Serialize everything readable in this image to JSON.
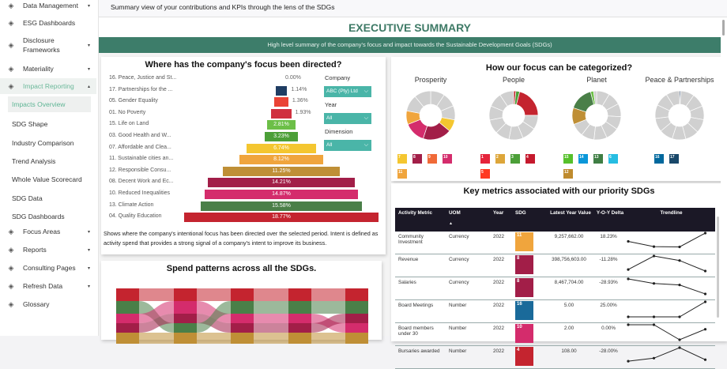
{
  "sidebar": {
    "items": [
      {
        "label": "Data Management",
        "icon": "network-icon",
        "caret": "▾"
      },
      {
        "label": "ESG Dashboards",
        "icon": "pie-icon"
      },
      {
        "label": "Disclosure Frameworks",
        "icon": "hierarchy-icon",
        "caret": "▾"
      },
      {
        "label": "Materiality",
        "icon": "scale-icon",
        "caret": "▾"
      },
      {
        "label": "Impact Reporting",
        "icon": "list-icon",
        "caret": "▴"
      },
      {
        "label": "Focus Areas",
        "icon": "target-icon",
        "caret": "▾"
      },
      {
        "label": "Reports",
        "icon": "report-icon",
        "caret": "▾"
      },
      {
        "label": "Consulting Pages",
        "icon": "handshake-icon",
        "caret": "▾"
      },
      {
        "label": "Refresh Data",
        "icon": "database-icon",
        "caret": "▾"
      },
      {
        "label": "Glossary",
        "icon": "book-icon"
      }
    ],
    "subitems": [
      "Impacts Overview",
      "SDG Shape",
      "Industry Comparison",
      "Trend Analysis",
      "Whole Value Scorecard",
      "SDG Data",
      "SDG Dashboards"
    ]
  },
  "header": {
    "subtitle": "Summary view of your contributions and KPIs through the lens of the SDGs"
  },
  "exec": {
    "title": "EXECUTIVE SUMMARY",
    "band": "High level summary of the company's focus and impact towards the Sustainable Development Goals (SDGs)"
  },
  "focus": {
    "title": "Where has the company's focus been directed?",
    "rows": [
      {
        "label": "16. Peace, Justice and St...",
        "value": 0.0,
        "text": "0.00%",
        "color": "#1a6a9a"
      },
      {
        "label": "17. Partnerships for the ...",
        "value": 1.14,
        "text": "1.14%",
        "color": "#1f3d63"
      },
      {
        "label": "05. Gender Equality",
        "value": 1.36,
        "text": "1.36%",
        "color": "#ea4335"
      },
      {
        "label": "01. No Poverty",
        "value": 1.93,
        "text": "1.93%",
        "color": "#d0303f"
      },
      {
        "label": "15. Life on Land",
        "value": 2.81,
        "text": "2.81%",
        "color": "#6cbf47"
      },
      {
        "label": "03. Good Health and W...",
        "value": 3.23,
        "text": "3.23%",
        "color": "#4c9f38"
      },
      {
        "label": "07. Affordable and Clea...",
        "value": 6.74,
        "text": "6.74%",
        "color": "#f4c630"
      },
      {
        "label": "11. Sustainable cities an...",
        "value": 8.12,
        "text": "8.12%",
        "color": "#f0a53d"
      },
      {
        "label": "12. Responsible Consu...",
        "value": 11.25,
        "text": "11.25%",
        "color": "#bf8f36"
      },
      {
        "label": "08. Decent Work and Ec...",
        "value": 14.21,
        "text": "14.21%",
        "color": "#a21e48"
      },
      {
        "label": "10. Reduced Inequalities",
        "value": 14.87,
        "text": "14.87%",
        "color": "#d42c6c"
      },
      {
        "label": "13. Climate Action",
        "value": 15.58,
        "text": "15.58%",
        "color": "#4a7f48"
      },
      {
        "label": "04. Quality Education",
        "value": 18.77,
        "text": "18.77%",
        "color": "#c4242f"
      }
    ],
    "filters": [
      {
        "label": "Company",
        "value": "ABC (Pty) Ltd"
      },
      {
        "label": "Year",
        "value": "All"
      },
      {
        "label": "Dimension",
        "value": "All"
      }
    ],
    "description": "Shows where the company's intentional focus has been directed over the selected period. Intent is defined as activity spend that provides a strong signal of a company's intent to improve its business."
  },
  "spend": {
    "title": "Spend patterns across all the SDGs.",
    "colors": {
      "r": "#c4242f",
      "g": "#4a7f48",
      "p": "#d42c6c",
      "m": "#a21e48",
      "o": "#bf8f36"
    },
    "columns": [
      [
        "r",
        "g",
        "p",
        "m",
        "o"
      ],
      [
        "r",
        "p",
        "m",
        "g",
        "o"
      ],
      [
        "r",
        "g",
        "p",
        "m",
        "o"
      ],
      [
        "r",
        "g",
        "p",
        "m",
        "o"
      ],
      [
        "r",
        "g",
        "m",
        "p",
        "o"
      ]
    ]
  },
  "categories": {
    "title": "How our focus can be categorized?",
    "donuts": [
      {
        "name": "Prosperity",
        "segments": [
          [
            28,
            "#d0d0d0"
          ],
          [
            8,
            "#f4c630"
          ],
          [
            19,
            "#a21e48"
          ],
          [
            14,
            "#d42c6c"
          ],
          [
            9,
            "#f0a53d"
          ],
          [
            22,
            "#d0d0d0"
          ]
        ],
        "icons": [
          [
            "7",
            "#f4c630"
          ],
          [
            "8",
            "#a21e48"
          ],
          [
            "9",
            "#f06a38"
          ],
          [
            "10",
            "#d42c6c"
          ],
          [
            "11",
            "#f0a53d"
          ]
        ]
      },
      {
        "name": "People",
        "segments": [
          [
            1.5,
            "#c4242f"
          ],
          [
            2.5,
            "#4c9f38"
          ],
          [
            21,
            "#c4242f"
          ],
          [
            75,
            "#d0d0d0"
          ]
        ],
        "icons": [
          [
            "1",
            "#e5243b"
          ],
          [
            "2",
            "#dda63a"
          ],
          [
            "3",
            "#4c9f38"
          ],
          [
            "4",
            "#c5192d"
          ],
          [
            "5",
            "#ff3a21"
          ]
        ]
      },
      {
        "name": "Planet",
        "segments": [
          [
            69,
            "#d0d0d0"
          ],
          [
            11,
            "#bf8f36"
          ],
          [
            16,
            "#4a7f48"
          ],
          [
            2,
            "#6cbf47"
          ],
          [
            2,
            "#d0d0d0"
          ]
        ],
        "icons": [
          [
            "15",
            "#56c02b"
          ],
          [
            "14",
            "#0a97d9"
          ],
          [
            "13",
            "#3f7e44"
          ],
          [
            "6",
            "#26bde2"
          ],
          [
            "12",
            "#bf8b2e"
          ]
        ]
      },
      {
        "name": "Peace & Partnerships",
        "segments": [
          [
            0.8,
            "#1f3d63"
          ],
          [
            99.2,
            "#d0d0d0"
          ]
        ],
        "icons": [
          [
            "16",
            "#00689d"
          ],
          [
            "17",
            "#19486a"
          ]
        ]
      }
    ]
  },
  "metrics": {
    "title": "Key metrics associated with our priority SDGs",
    "columns": [
      "Activity Metric",
      "UOM",
      "Year",
      "SDG",
      "Latest Year Value",
      "Y-O-Y Delta",
      "Trendline"
    ],
    "sort_icon": "▲",
    "rows": [
      {
        "metric": "Community Investment",
        "uom": "Currency",
        "year": "2022",
        "sdg": "11",
        "sdg_color": "#f0a53d",
        "value": "9,257,662.00",
        "delta": "18.23%",
        "trend": [
          0.45,
          0.1,
          0.08,
          1
        ]
      },
      {
        "metric": "Revenue",
        "uom": "Currency",
        "year": "2022",
        "sdg": "8",
        "sdg_color": "#a21e48",
        "value": "398,756,603.00",
        "delta": "-11.28%",
        "trend": [
          0.1,
          1,
          0.7,
          0
        ]
      },
      {
        "metric": "Salaries",
        "uom": "Currency",
        "year": "2022",
        "sdg": "8",
        "sdg_color": "#a21e48",
        "value": "8,467,704.00",
        "delta": "-28.93%",
        "trend": [
          1,
          0.7,
          0.6,
          0
        ]
      },
      {
        "metric": "Board Meetings",
        "uom": "Number",
        "year": "2022",
        "sdg": "16",
        "sdg_color": "#1a6a9a",
        "value": "5.00",
        "delta": "25.00%",
        "trend": [
          0,
          0,
          0,
          1
        ]
      },
      {
        "metric": "Board members under 30",
        "uom": "Number",
        "year": "2022",
        "sdg": "10",
        "sdg_color": "#d42c6c",
        "value": "2.00",
        "delta": "0.00%",
        "trend": [
          1,
          1,
          0,
          0.7
        ]
      },
      {
        "metric": "Bursaries awarded",
        "uom": "Number",
        "year": "2022",
        "sdg": "4",
        "sdg_color": "#c4242f",
        "value": "108.00",
        "delta": "-28.00%",
        "trend": [
          0.1,
          0.3,
          1,
          0.2
        ]
      }
    ]
  }
}
